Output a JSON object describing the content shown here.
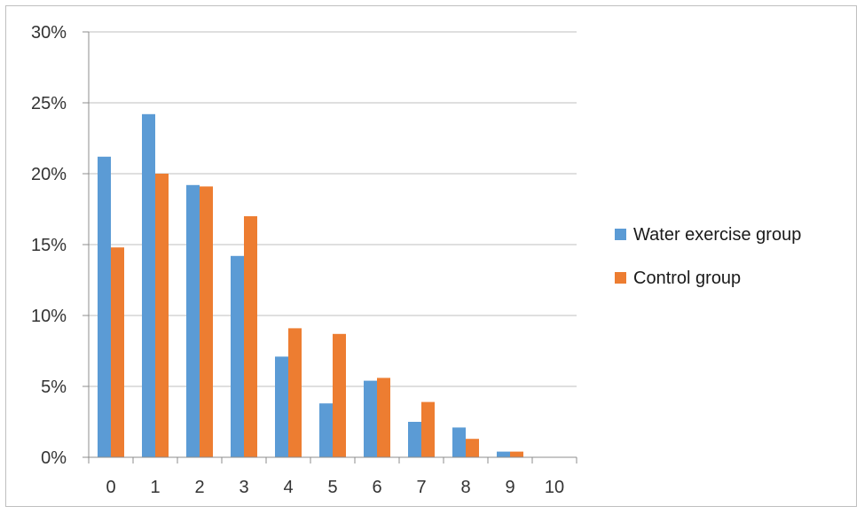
{
  "chart_data": {
    "type": "bar",
    "categories": [
      "0",
      "1",
      "2",
      "3",
      "4",
      "5",
      "6",
      "7",
      "8",
      "9",
      "10"
    ],
    "series": [
      {
        "name": "Water exercise group",
        "color": "#5b9bd5",
        "values": [
          21.2,
          24.2,
          19.2,
          14.2,
          7.1,
          3.8,
          5.4,
          2.5,
          2.1,
          0.4,
          0
        ]
      },
      {
        "name": "Control group",
        "color": "#ed7d31",
        "values": [
          14.8,
          20.0,
          19.1,
          17.0,
          9.1,
          8.7,
          5.6,
          3.9,
          1.3,
          0.4,
          0
        ]
      }
    ],
    "ylim": [
      0,
      30
    ],
    "yticks": [
      0,
      5,
      10,
      15,
      20,
      25,
      30
    ],
    "ytick_labels": [
      "0%",
      "5%",
      "10%",
      "15%",
      "20%",
      "25%",
      "30%"
    ],
    "grid": true,
    "legend": "right",
    "title": "",
    "xlabel": "",
    "ylabel": ""
  }
}
